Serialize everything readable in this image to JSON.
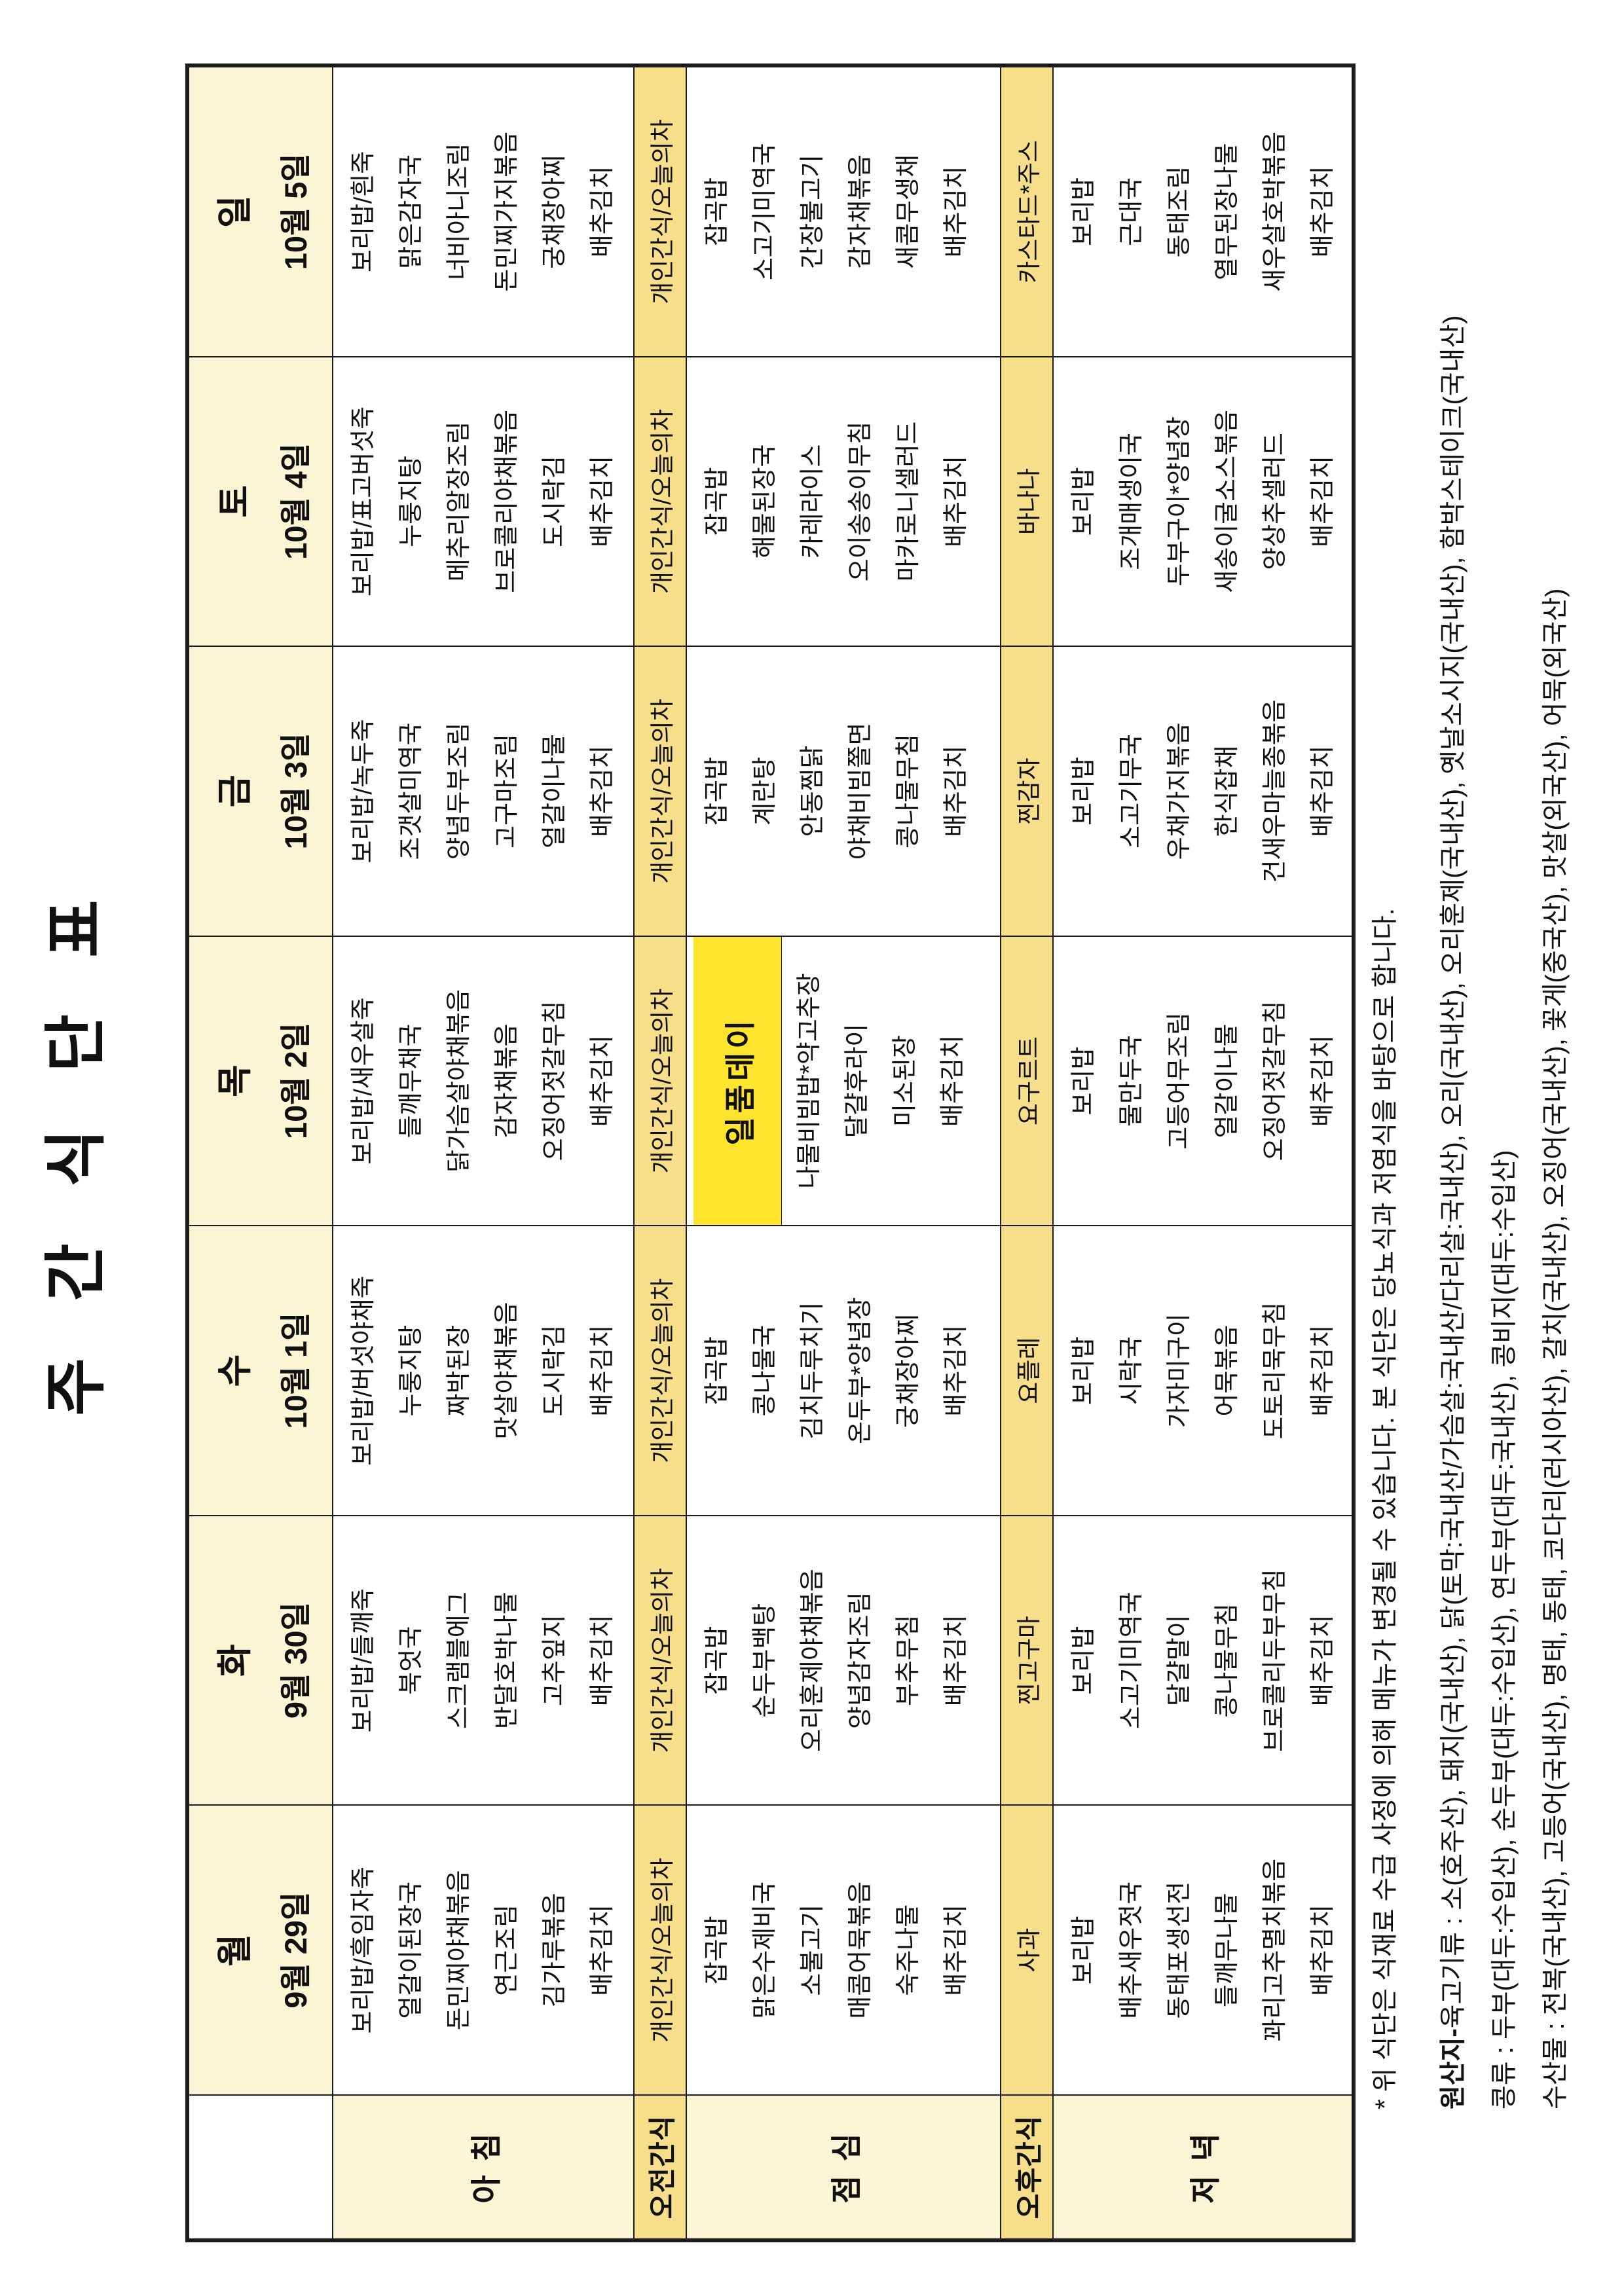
{
  "title": "주 간 식 단 표",
  "table": {
    "category_labels": {
      "breakfast": "아 침",
      "am_snack": "오전간식",
      "lunch": "점 심",
      "pm_snack": "오후간식",
      "dinner": "저 녁"
    },
    "days": [
      {
        "name": "월",
        "date": "9월 29일",
        "breakfast": [
          "보리밥/흑임자죽",
          "얼갈이된장국",
          "돈민찌야채볶음",
          "연근조림",
          "김가루볶음",
          "배추김치"
        ],
        "am_snack": "개인간식/오늘의차",
        "lunch_special": "",
        "lunch": [
          "잡곡밥",
          "맑은수제비국",
          "소불고기",
          "매콤어묵볶음",
          "숙주나물",
          "배추김치"
        ],
        "pm_snack": "사과",
        "dinner": [
          "보리밥",
          "배추새우젓국",
          "동태포생선전",
          "들깨무나물",
          "꽈리고추멸치볶음",
          "배추김치"
        ]
      },
      {
        "name": "화",
        "date": "9월 30일",
        "breakfast": [
          "보리밥/들깨죽",
          "북엇국",
          "스크램블에그",
          "반달호박나물",
          "고추잎지",
          "배추김치"
        ],
        "am_snack": "개인간식/오늘의차",
        "lunch_special": "",
        "lunch": [
          "잡곡밥",
          "순두부백탕",
          "오리훈제야채볶음",
          "양념감자조림",
          "부추무침",
          "배추김치"
        ],
        "pm_snack": "찐고구마",
        "dinner": [
          "보리밥",
          "소고기미역국",
          "달걀말이",
          "콩나물무침",
          "브로콜리두부무침",
          "배추김치"
        ]
      },
      {
        "name": "수",
        "date": "10월 1일",
        "breakfast": [
          "보리밥/버섯야채죽",
          "누룽지탕",
          "짜박된장",
          "맛살야채볶음",
          "도시락김",
          "배추김치"
        ],
        "am_snack": "개인간식/오늘의차",
        "lunch_special": "",
        "lunch": [
          "잡곡밥",
          "콩나물국",
          "김치두루치기",
          "온두부*양념장",
          "궁채장아찌",
          "배추김치"
        ],
        "pm_snack": "요플레",
        "dinner": [
          "보리밥",
          "시락국",
          "가자미구이",
          "어묵볶음",
          "도토리묵무침",
          "배추김치"
        ]
      },
      {
        "name": "목",
        "date": "10월 2일",
        "breakfast": [
          "보리밥/새우살죽",
          "들깨무채국",
          "닭가슴살야채볶음",
          "감자채볶음",
          "오징어젓갈무침",
          "배추김치"
        ],
        "am_snack": "개인간식/오늘의차",
        "lunch_special": "일품데이",
        "lunch": [
          "나물비빔밥*약고추장",
          "달걀후라이",
          "미소된장",
          "배추김치"
        ],
        "pm_snack": "요구르트",
        "dinner": [
          "보리밥",
          "물만두국",
          "고등어무조림",
          "얼갈이나물",
          "오징어젓갈무침",
          "배추김치"
        ]
      },
      {
        "name": "금",
        "date": "10월 3일",
        "breakfast": [
          "보리밥/녹두죽",
          "조갯살미역국",
          "양념두부조림",
          "고구마조림",
          "얼갈이나물",
          "배추김치"
        ],
        "am_snack": "개인간식/오늘의차",
        "lunch_special": "",
        "lunch": [
          "잡곡밥",
          "계란탕",
          "안동찜닭",
          "야채비빔쫄면",
          "콩나물무침",
          "배추김치"
        ],
        "pm_snack": "찐감자",
        "dinner": [
          "보리밥",
          "소고기무국",
          "우채가지볶음",
          "한식잡채",
          "건새우마늘종볶음",
          "배추김치"
        ]
      },
      {
        "name": "토",
        "date": "10월 4일",
        "breakfast": [
          "보리밥/표고버섯죽",
          "누룽지탕",
          "메추리알장조림",
          "브로콜리야채볶음",
          "도시락김",
          "배추김치"
        ],
        "am_snack": "개인간식/오늘의차",
        "lunch_special": "",
        "lunch": [
          "잡곡밥",
          "해물된장국",
          "카레라이스",
          "오이송송이무침",
          "마카로니샐러드",
          "배추김치"
        ],
        "pm_snack": "바나나",
        "dinner": [
          "보리밥",
          "조개매생이국",
          "두부구이*양념장",
          "새송이굴소스볶음",
          "양상추샐러드",
          "배추김치"
        ]
      },
      {
        "name": "일",
        "date": "10월 5일",
        "breakfast": [
          "보리밥/흰죽",
          "맑은감자국",
          "너비아니조림",
          "돈민찌가지볶음",
          "궁채장아찌",
          "배추김치"
        ],
        "am_snack": "개인간식/오늘의차",
        "lunch_special": "",
        "lunch": [
          "잡곡밥",
          "소고기미역국",
          "간장불고기",
          "감자채볶음",
          "새콤무생채",
          "배추김치"
        ],
        "pm_snack": "카스타드*주스",
        "dinner": [
          "보리밥",
          "근대국",
          "동태조림",
          "열무된장나물",
          "새우살호박볶음",
          "배추김치"
        ]
      }
    ]
  },
  "footnotes": [
    {
      "bold_prefix": "",
      "text": "* 위 식단은 식재료 수급 사정에 의해 메뉴가 변경될 수 있습니다. 본 식단은 당뇨식과 저염식을 바탕으로 합니다."
    },
    {
      "bold_prefix": "원산지-",
      "text": " 육고기류 : 소(호주산), 돼지(국내산), 닭(토막:국내산/가슴살:국내산/다리살:국내산), 오리(국내산), 오리훈제(국내산), 옛날소시지(국내산), 함박스테이크(국내산)"
    },
    {
      "bold_prefix": "",
      "text": "콩류 : 두부(대두:수입산), 순두부(대두:수입산), 연두부(대두:국내산), 콩비지(대두:수입산)"
    },
    {
      "bold_prefix": "",
      "text": "수산물 : 전복(국내산), 고등어(국내산), 명태, 동태, 코다리(러시아산), 갈치(국내산), 오징어(국내산), 꽃게(중국산), 맛살(외국산), 어묵(외국산)"
    }
  ],
  "colors": {
    "cream": "#faf5d5",
    "gold": "#f6de8b",
    "special_yellow": "#ffe42e",
    "border": "#1c1c1c",
    "text": "#111111"
  }
}
